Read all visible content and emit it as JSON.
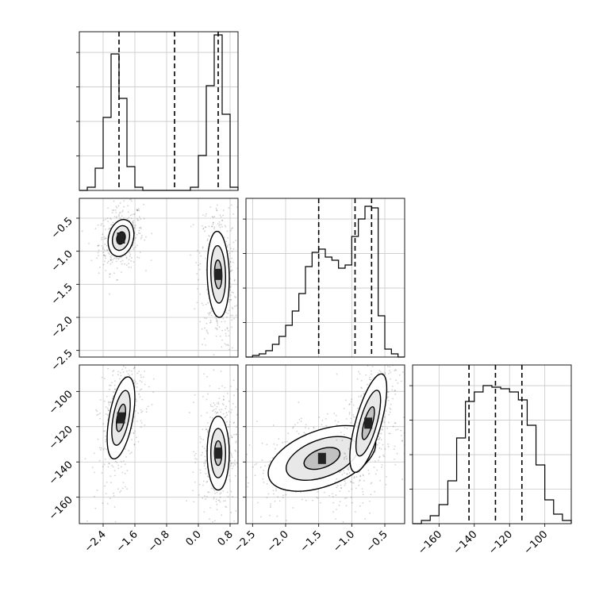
{
  "chart_data": {
    "type": "corner",
    "title": "",
    "parameters": [
      {
        "name": "",
        "range": [
          -3.0,
          1.0
        ],
        "tick_values": [
          -2.4,
          -1.6,
          -0.8,
          0.0,
          0.8
        ],
        "tick_labels": [
          "−2.4",
          "−1.6",
          "−0.8",
          "0.0",
          "0.8"
        ],
        "quantile_lines": [
          -2.0,
          -0.6,
          0.5
        ],
        "hist_max": 1.0,
        "histogram": {
          "bin_edges": [
            -3.0,
            -2.8,
            -2.6,
            -2.4,
            -2.2,
            -2.0,
            -1.8,
            -1.6,
            -1.4,
            -1.2,
            -1.0,
            -0.8,
            -0.6,
            -0.4,
            -0.2,
            0.0,
            0.2,
            0.4,
            0.6,
            0.8,
            1.0
          ],
          "counts": [
            0.0,
            0.02,
            0.14,
            0.46,
            0.86,
            0.58,
            0.15,
            0.02,
            0.0,
            0.0,
            0.0,
            0.0,
            0.0,
            0.0,
            0.02,
            0.22,
            0.66,
            0.98,
            0.48,
            0.02
          ]
        }
      },
      {
        "name": "",
        "range": [
          -2.6,
          -0.2
        ],
        "tick_values": [
          -2.5,
          -2.0,
          -1.5,
          -1.0,
          -0.5
        ],
        "tick_labels": [
          "−2.5",
          "−2.0",
          "−1.5",
          "−1.0",
          "−0.5"
        ],
        "quantile_lines": [
          -1.5,
          -0.95,
          -0.7
        ],
        "hist_max": 1.0,
        "histogram": {
          "bin_edges": [
            -2.6,
            -2.5,
            -2.4,
            -2.3,
            -2.2,
            -2.1,
            -2.0,
            -1.9,
            -1.8,
            -1.7,
            -1.6,
            -1.5,
            -1.4,
            -1.3,
            -1.2,
            -1.1,
            -1.0,
            -0.9,
            -0.8,
            -0.7,
            -0.6,
            -0.5,
            -0.4,
            -0.3,
            -0.2
          ],
          "counts": [
            0.0,
            0.01,
            0.02,
            0.04,
            0.08,
            0.13,
            0.2,
            0.29,
            0.4,
            0.57,
            0.66,
            0.68,
            0.63,
            0.61,
            0.56,
            0.58,
            0.76,
            0.87,
            0.95,
            0.94,
            0.26,
            0.05,
            0.02,
            0.0
          ]
        }
      },
      {
        "name": "",
        "range": [
          -175,
          -85
        ],
        "tick_values": [
          -160,
          -140,
          -120,
          -100
        ],
        "tick_labels": [
          "−160",
          "−140",
          "−120",
          "−100"
        ],
        "quantile_lines": [
          -143,
          -128,
          -113
        ],
        "hist_max": 1.0,
        "histogram": {
          "bin_edges": [
            -175,
            -170,
            -165,
            -160,
            -155,
            -150,
            -145,
            -140,
            -135,
            -130,
            -125,
            -120,
            -115,
            -110,
            -105,
            -100,
            -95,
            -90,
            -85
          ],
          "counts": [
            0.0,
            0.02,
            0.05,
            0.12,
            0.27,
            0.54,
            0.77,
            0.83,
            0.87,
            0.86,
            0.85,
            0.83,
            0.78,
            0.62,
            0.37,
            0.15,
            0.06,
            0.02
          ]
        }
      }
    ],
    "pairs": [
      {
        "x_param": 0,
        "y_param": 1,
        "modes": [
          {
            "center": [
              -1.95,
              -0.8
            ],
            "sigma": [
              0.14,
              0.12
            ],
            "rho": 0.2
          },
          {
            "center": [
              0.5,
              -1.35
            ],
            "sigma": [
              0.12,
              0.28
            ],
            "rho": -0.1
          }
        ]
      },
      {
        "x_param": 0,
        "y_param": 2,
        "modes": [
          {
            "center": [
              -1.95,
              -115
            ],
            "sigma": [
              0.15,
              10
            ],
            "rho": 0.5
          },
          {
            "center": [
              0.5,
              -135
            ],
            "sigma": [
              0.12,
              9
            ],
            "rho": 0.0
          }
        ]
      },
      {
        "x_param": 1,
        "y_param": 2,
        "modes": [
          {
            "center": [
              -1.45,
              -138
            ],
            "sigma": [
              0.35,
              8
            ],
            "rho": 0.45
          },
          {
            "center": [
              -0.75,
              -118
            ],
            "sigma": [
              0.12,
              12
            ],
            "rho": 0.7
          }
        ]
      }
    ],
    "contour_levels_sigma": [
      0.5,
      1.0,
      1.5
    ],
    "grid": true
  }
}
